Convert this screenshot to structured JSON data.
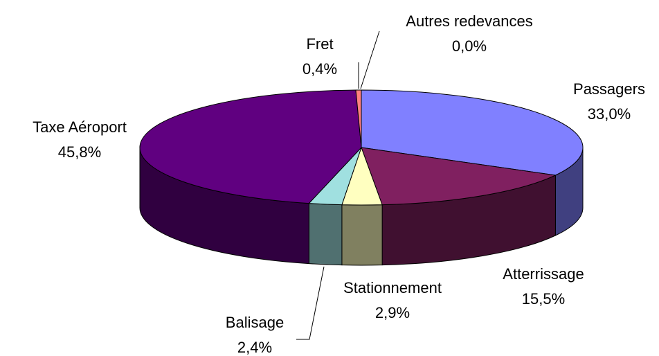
{
  "chart_data": {
    "type": "pie3d",
    "categories": [
      "Passagers",
      "Atterrissage",
      "Stationnement",
      "Balisage",
      "Taxe Aéroport",
      "Fret",
      "Autres redevances"
    ],
    "values": [
      33.0,
      15.5,
      2.9,
      2.4,
      45.8,
      0.4,
      0.0
    ],
    "value_labels": [
      "33,0%",
      "15,5%",
      "2,9%",
      "2,4%",
      "45,8%",
      "0,4%",
      "0,0%"
    ],
    "colors": [
      "#8080ff",
      "#802060",
      "#ffffc0",
      "#a0e0e0",
      "#600080",
      "#ff8080",
      "#ffc000"
    ]
  }
}
